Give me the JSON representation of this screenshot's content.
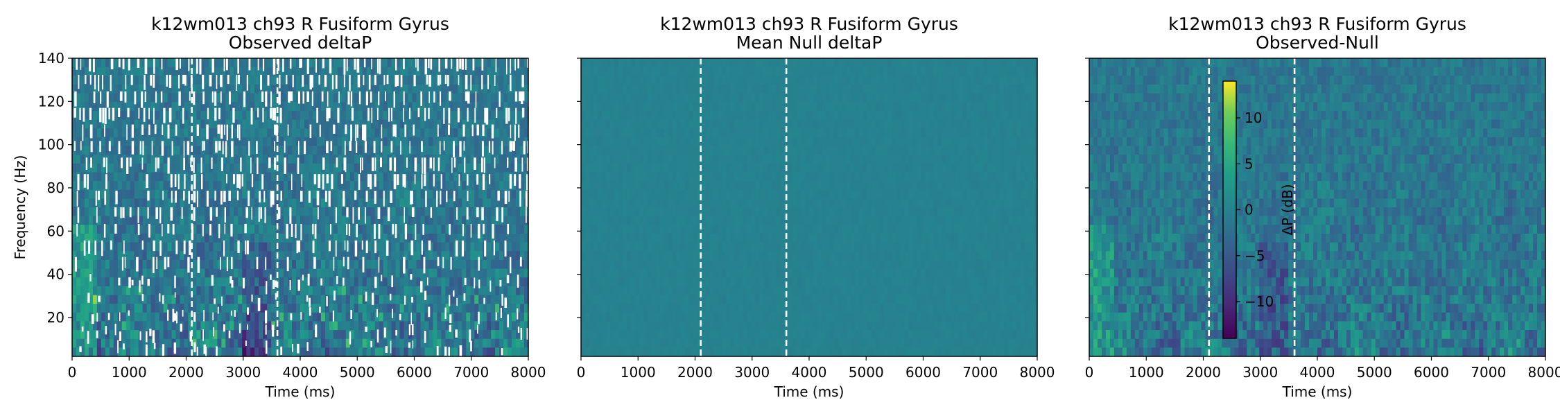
{
  "chart_data": [
    {
      "type": "heatmap",
      "title": "k12wm013 ch93 R Fusiform Gyrus",
      "subtitle": "Observed deltaP",
      "xlabel": "Time (ms)",
      "ylabel": "Frequency (Hz)",
      "xlim": [
        0,
        8000
      ],
      "ylim": [
        2,
        140
      ],
      "xticks": [
        "0",
        "1000",
        "2000",
        "3000",
        "4000",
        "5000",
        "6000",
        "7000",
        "8000"
      ],
      "yticks": [
        "20",
        "40",
        "60",
        "80",
        "100",
        "120",
        "140"
      ],
      "show_ytick_labels": true,
      "event_lines_ms": [
        2100,
        3600
      ],
      "masked": true,
      "variance": "high",
      "colormap": "viridis"
    },
    {
      "type": "heatmap",
      "title": "k12wm013 ch93 R Fusiform Gyrus",
      "subtitle": "Mean Null deltaP",
      "xlabel": "Time (ms)",
      "ylabel": "",
      "xlim": [
        0,
        8000
      ],
      "ylim": [
        2,
        140
      ],
      "xticks": [
        "0",
        "1000",
        "2000",
        "3000",
        "4000",
        "5000",
        "6000",
        "7000",
        "8000"
      ],
      "yticks": [
        "20",
        "40",
        "60",
        "80",
        "100",
        "120",
        "140"
      ],
      "show_ytick_labels": false,
      "event_lines_ms": [
        2100,
        3600
      ],
      "masked": false,
      "variance": "flat",
      "colormap": "viridis"
    },
    {
      "type": "heatmap",
      "title": "k12wm013 ch93 R Fusiform Gyrus",
      "subtitle": "Observed-Null",
      "xlabel": "Time (ms)",
      "ylabel": "",
      "xlim": [
        0,
        8000
      ],
      "ylim": [
        2,
        140
      ],
      "xticks": [
        "0",
        "1000",
        "2000",
        "3000",
        "4000",
        "5000",
        "6000",
        "7000",
        "8000"
      ],
      "yticks": [
        "20",
        "40",
        "60",
        "80",
        "100",
        "120",
        "140"
      ],
      "show_ytick_labels": false,
      "event_lines_ms": [
        2100,
        3600
      ],
      "masked": false,
      "variance": "high",
      "colormap": "viridis",
      "colorbar": {
        "label": "ΔP (dB)",
        "range": [
          -14,
          14
        ],
        "ticks": [
          10,
          5,
          0,
          -5,
          -10
        ],
        "tick_labels": [
          "10",
          "5",
          "0",
          "−5",
          "−10"
        ]
      }
    }
  ],
  "colors": {
    "event_line": "#ffffff",
    "mask": "#ffffff",
    "viridis_low": "#440154",
    "viridis_mid": "#21918c",
    "viridis_high": "#fde725"
  }
}
